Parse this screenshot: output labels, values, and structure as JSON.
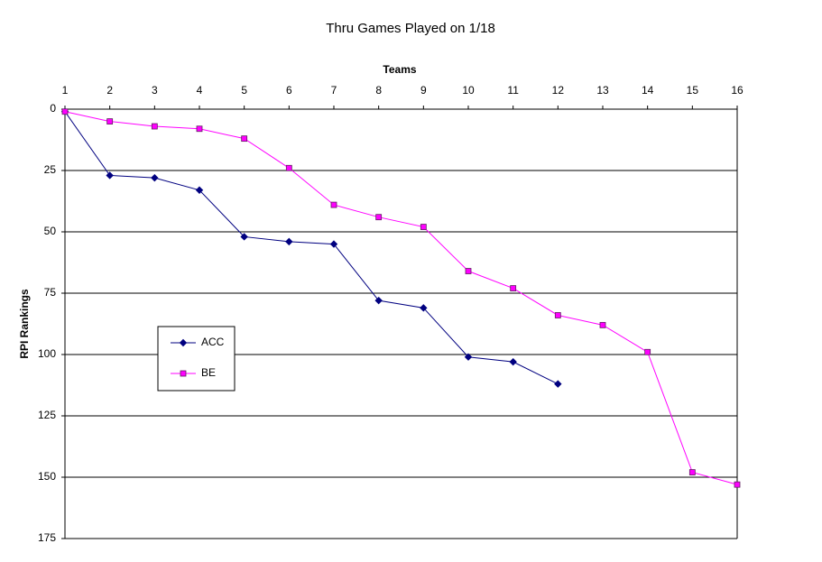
{
  "chart_data": {
    "type": "line",
    "title": "Thru Games Played on 1/18",
    "x_label": "Teams",
    "y_label": "RPI Rankings",
    "x": [
      1,
      2,
      3,
      4,
      5,
      6,
      7,
      8,
      9,
      10,
      11,
      12,
      13,
      14,
      15,
      16
    ],
    "series": [
      {
        "name": "ACC",
        "color": "#000080",
        "marker": "diamond",
        "values": [
          1,
          27,
          28,
          33,
          52,
          54,
          55,
          78,
          81,
          101,
          103,
          112,
          null,
          null,
          null,
          null
        ]
      },
      {
        "name": "BE",
        "color": "#ff00ff",
        "marker": "square",
        "values": [
          1,
          5,
          7,
          8,
          12,
          24,
          39,
          44,
          48,
          66,
          73,
          84,
          88,
          99,
          148,
          153
        ]
      }
    ],
    "xlim": [
      1,
      16
    ],
    "xticks": [
      1,
      2,
      3,
      4,
      5,
      6,
      7,
      8,
      9,
      10,
      11,
      12,
      13,
      14,
      15,
      16
    ],
    "x_axis_position": "top",
    "ylim": [
      0,
      175
    ],
    "yticks": [
      0,
      25,
      50,
      75,
      100,
      125,
      150,
      175
    ],
    "y_reversed": true,
    "grid": true,
    "legend_position": "left"
  }
}
